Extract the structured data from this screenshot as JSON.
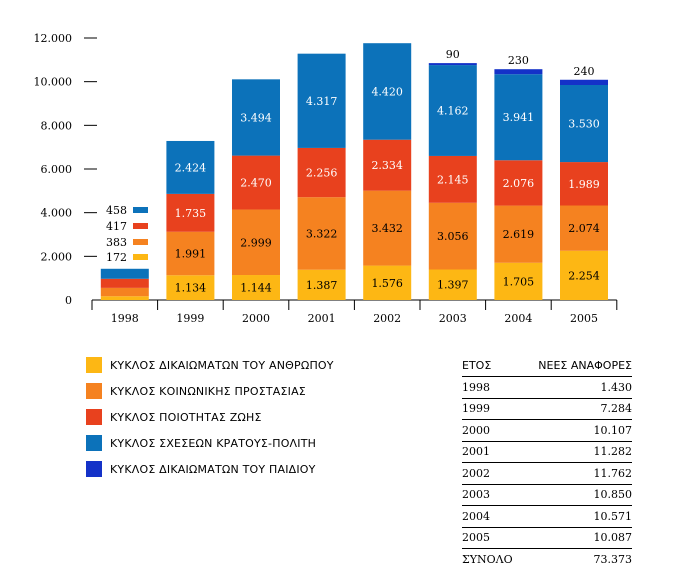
{
  "chart_data": {
    "type": "bar",
    "stacked": true,
    "categories": [
      "1998",
      "1999",
      "2000",
      "2001",
      "2002",
      "2003",
      "2004",
      "2005"
    ],
    "ylim": [
      0,
      12000
    ],
    "y_ticks": [
      "0",
      "2.000",
      "4.000",
      "6.000",
      "8.000",
      "10.000",
      "12.000"
    ],
    "series": [
      {
        "name": "ΚΥΚΛΟΣ ΔΙΚΑΙΩΜΑΤΩΝ ΤΟΥ ΑΝΘΡΩΠΟΥ",
        "color": "#FDB714",
        "values": [
          172,
          1134,
          1144,
          1387,
          1576,
          1397,
          1705,
          2254
        ],
        "labels": [
          "172",
          "1.134",
          "1.144",
          "1.387",
          "1.576",
          "1.397",
          "1.705",
          "2.254"
        ]
      },
      {
        "name": "ΚΥΚΛΟΣ ΚΟΙΝΩΝΙΚΗΣ ΠΡΟΣΤΑΣΙΑΣ",
        "color": "#F58220",
        "values": [
          383,
          1991,
          2999,
          3322,
          3432,
          3056,
          2619,
          2074
        ],
        "labels": [
          "383",
          "1.991",
          "2.999",
          "3.322",
          "3.432",
          "3.056",
          "2.619",
          "2.074"
        ]
      },
      {
        "name": "ΚΥΚΛΟΣ ΠΟΙΟΤΗΤΑΣ ΖΩΗΣ",
        "color": "#E8411E",
        "values": [
          417,
          1735,
          2470,
          2256,
          2334,
          2145,
          2076,
          1989
        ],
        "labels": [
          "417",
          "1.735",
          "2.470",
          "2.256",
          "2.334",
          "2.145",
          "2.076",
          "1.989"
        ]
      },
      {
        "name": "ΚΥΚΛΟΣ ΣΧΕΣΕΩΝ ΚΡΑΤΟΥΣ-ΠΟΛΙΤΗ",
        "color": "#0C72BA",
        "values": [
          458,
          2424,
          3494,
          4317,
          4420,
          4162,
          3941,
          3530
        ],
        "labels": [
          "458",
          "2.424",
          "3.494",
          "4.317",
          "4.420",
          "4.162",
          "3.941",
          "3.530"
        ]
      },
      {
        "name": "ΚΥΚΛΟΣ ΔΙΚΑΙΩΜΑΤΩΝ ΤΟΥ ΠΑΙΔΙΟΥ",
        "color": "#1432C8",
        "values": [
          0,
          0,
          0,
          0,
          0,
          90,
          230,
          240
        ],
        "labels": [
          "",
          "",
          "",
          "",
          "",
          "90",
          "230",
          "240"
        ]
      }
    ],
    "table": {
      "headers": [
        "ΕΤΟΣ",
        "ΝΕΕΣ ΑΝΑΦΟΡΕΣ"
      ],
      "rows": [
        [
          "1998",
          "1.430"
        ],
        [
          "1999",
          "7.284"
        ],
        [
          "2000",
          "10.107"
        ],
        [
          "2001",
          "11.282"
        ],
        [
          "2002",
          "11.762"
        ],
        [
          "2003",
          "10.850"
        ],
        [
          "2004",
          "10.571"
        ],
        [
          "2005",
          "10.087"
        ]
      ],
      "total": [
        "ΣΥΝΟΛΟ",
        "73.373"
      ]
    }
  }
}
